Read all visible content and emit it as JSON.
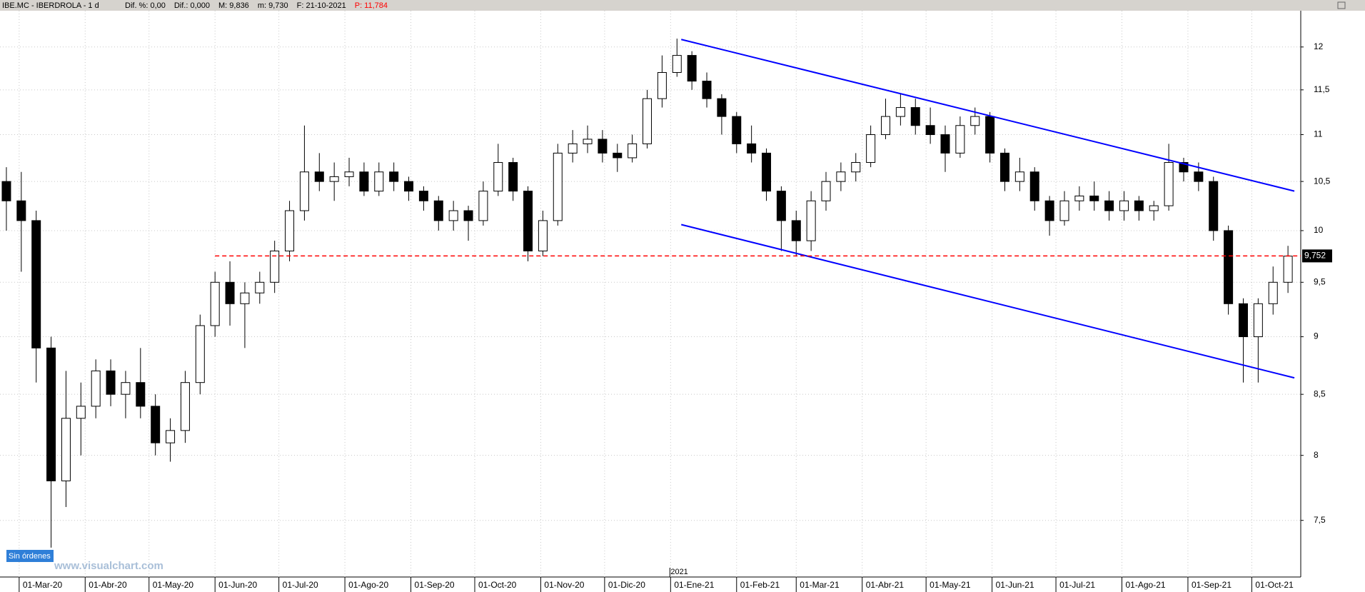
{
  "chart_data": {
    "type": "candlestick",
    "title": "IBE.MC - IBERDROLA - 1 d",
    "header_items": [
      "Dif. %: 0,00",
      "Dif.: 0,000",
      "M: 9,836",
      "m: 9,730",
      "F: 21-10-2021",
      "P: 11,784"
    ],
    "header_colors": [
      "#000000",
      "#000000",
      "#000000",
      "#000000",
      "#000000",
      "#ff0000"
    ],
    "status": "Sin órdenes",
    "watermark": "www.visualchart.com",
    "year_label": "2021",
    "log_scale": true,
    "grid": true,
    "up_color": "#ffffff",
    "down_color": "#000000",
    "x": [
      "2020-02-24",
      "2020-03-02",
      "2020-03-09",
      "2020-03-16",
      "2020-03-23",
      "2020-03-30",
      "2020-04-06",
      "2020-04-13",
      "2020-04-20",
      "2020-04-27",
      "2020-05-04",
      "2020-05-11",
      "2020-05-18",
      "2020-05-25",
      "2020-06-01",
      "2020-06-08",
      "2020-06-15",
      "2020-06-22",
      "2020-06-29",
      "2020-07-06",
      "2020-07-13",
      "2020-07-20",
      "2020-07-27",
      "2020-08-03",
      "2020-08-10",
      "2020-08-17",
      "2020-08-24",
      "2020-08-31",
      "2020-09-07",
      "2020-09-14",
      "2020-09-21",
      "2020-09-28",
      "2020-10-05",
      "2020-10-12",
      "2020-10-19",
      "2020-10-26",
      "2020-11-02",
      "2020-11-09",
      "2020-11-16",
      "2020-11-23",
      "2020-11-30",
      "2020-12-07",
      "2020-12-14",
      "2020-12-21",
      "2020-12-28",
      "2021-01-04",
      "2021-01-11",
      "2021-01-18",
      "2021-01-25",
      "2021-02-01",
      "2021-02-08",
      "2021-02-15",
      "2021-02-22",
      "2021-03-01",
      "2021-03-08",
      "2021-03-15",
      "2021-03-22",
      "2021-03-29",
      "2021-04-05",
      "2021-04-12",
      "2021-04-19",
      "2021-04-26",
      "2021-05-03",
      "2021-05-10",
      "2021-05-17",
      "2021-05-24",
      "2021-05-31",
      "2021-06-07",
      "2021-06-14",
      "2021-06-21",
      "2021-06-28",
      "2021-07-05",
      "2021-07-12",
      "2021-07-19",
      "2021-07-26",
      "2021-08-02",
      "2021-08-09",
      "2021-08-16",
      "2021-08-23",
      "2021-08-30",
      "2021-09-06",
      "2021-09-13",
      "2021-09-20",
      "2021-09-27",
      "2021-10-04",
      "2021-10-11",
      "2021-10-18"
    ],
    "open": [
      10.5,
      10.3,
      10.1,
      8.9,
      7.8,
      8.3,
      8.4,
      8.7,
      8.5,
      8.6,
      8.4,
      8.1,
      8.2,
      8.6,
      9.1,
      9.5,
      9.3,
      9.4,
      9.5,
      9.8,
      10.2,
      10.6,
      10.5,
      10.55,
      10.6,
      10.4,
      10.6,
      10.5,
      10.4,
      10.3,
      10.1,
      10.2,
      10.1,
      10.4,
      10.7,
      10.4,
      9.8,
      10.1,
      10.8,
      10.9,
      10.95,
      10.8,
      10.75,
      10.9,
      11.4,
      11.7,
      11.9,
      11.6,
      11.4,
      11.2,
      10.9,
      10.8,
      10.4,
      10.1,
      9.9,
      10.3,
      10.5,
      10.6,
      10.7,
      11.0,
      11.2,
      11.3,
      11.1,
      11.0,
      10.8,
      11.1,
      11.2,
      10.8,
      10.5,
      10.6,
      10.3,
      10.1,
      10.3,
      10.35,
      10.3,
      10.2,
      10.3,
      10.2,
      10.25,
      10.7,
      10.6,
      10.5,
      10.0,
      9.3,
      9.0,
      9.3,
      9.5
    ],
    "high": [
      10.65,
      10.6,
      10.2,
      9.0,
      8.7,
      8.6,
      8.8,
      8.8,
      8.7,
      8.9,
      8.5,
      8.3,
      8.7,
      9.2,
      9.6,
      9.7,
      9.5,
      9.6,
      9.9,
      10.3,
      11.1,
      10.8,
      10.7,
      10.75,
      10.7,
      10.7,
      10.7,
      10.55,
      10.45,
      10.35,
      10.3,
      10.25,
      10.5,
      10.9,
      10.75,
      10.45,
      10.2,
      10.9,
      11.05,
      11.1,
      11.05,
      10.9,
      11.0,
      11.5,
      11.9,
      12.1,
      11.95,
      11.7,
      11.45,
      11.25,
      11.1,
      10.85,
      10.45,
      10.2,
      10.4,
      10.6,
      10.7,
      10.8,
      11.1,
      11.4,
      11.45,
      11.4,
      11.3,
      11.1,
      11.2,
      11.3,
      11.25,
      10.85,
      10.75,
      10.65,
      10.35,
      10.4,
      10.45,
      10.5,
      10.4,
      10.4,
      10.35,
      10.3,
      10.9,
      10.75,
      10.7,
      10.55,
      10.05,
      9.35,
      9.35,
      9.65,
      9.85
    ],
    "low": [
      10.0,
      9.6,
      8.6,
      7.3,
      7.6,
      8.0,
      8.3,
      8.4,
      8.3,
      8.3,
      8.0,
      7.95,
      8.1,
      8.5,
      9.0,
      9.1,
      8.9,
      9.3,
      9.4,
      9.7,
      10.1,
      10.4,
      10.3,
      10.45,
      10.35,
      10.35,
      10.4,
      10.3,
      10.2,
      10.0,
      10.0,
      9.9,
      10.05,
      10.35,
      10.3,
      9.7,
      9.75,
      10.05,
      10.7,
      10.8,
      10.7,
      10.6,
      10.7,
      10.85,
      11.3,
      11.65,
      11.5,
      11.3,
      11.0,
      10.8,
      10.7,
      10.3,
      9.8,
      9.75,
      9.8,
      10.2,
      10.4,
      10.5,
      10.65,
      10.95,
      11.1,
      11.0,
      10.9,
      10.6,
      10.75,
      11.0,
      10.7,
      10.4,
      10.4,
      10.2,
      9.95,
      10.05,
      10.2,
      10.2,
      10.1,
      10.1,
      10.1,
      10.1,
      10.2,
      10.5,
      10.4,
      9.9,
      9.2,
      8.6,
      8.6,
      9.2,
      9.4
    ],
    "close": [
      10.3,
      10.1,
      8.9,
      7.8,
      8.3,
      8.4,
      8.7,
      8.5,
      8.6,
      8.4,
      8.1,
      8.2,
      8.6,
      9.1,
      9.5,
      9.3,
      9.4,
      9.5,
      9.8,
      10.2,
      10.6,
      10.5,
      10.55,
      10.6,
      10.4,
      10.6,
      10.5,
      10.4,
      10.3,
      10.1,
      10.2,
      10.1,
      10.4,
      10.7,
      10.4,
      9.8,
      10.1,
      10.8,
      10.9,
      10.95,
      10.8,
      10.75,
      10.9,
      11.4,
      11.7,
      11.9,
      11.6,
      11.4,
      11.2,
      10.9,
      10.8,
      10.4,
      10.1,
      9.9,
      10.3,
      10.5,
      10.6,
      10.7,
      11.0,
      11.2,
      11.3,
      11.1,
      11.0,
      10.8,
      11.1,
      11.2,
      10.8,
      10.5,
      10.6,
      10.3,
      10.1,
      10.3,
      10.35,
      10.3,
      10.2,
      10.3,
      10.2,
      10.25,
      10.7,
      10.6,
      10.5,
      10.0,
      9.3,
      9.0,
      9.3,
      9.5,
      9.75
    ],
    "xlim": [
      "2020-02-21",
      "2021-10-24"
    ],
    "xticks": [
      {
        "value": "2020-03-01",
        "label": "01-Mar-20"
      },
      {
        "value": "2020-04-01",
        "label": "01-Abr-20"
      },
      {
        "value": "2020-05-01",
        "label": "01-May-20"
      },
      {
        "value": "2020-06-01",
        "label": "01-Jun-20"
      },
      {
        "value": "2020-07-01",
        "label": "01-Jul-20"
      },
      {
        "value": "2020-08-01",
        "label": "01-Ago-20"
      },
      {
        "value": "2020-09-01",
        "label": "01-Sep-20"
      },
      {
        "value": "2020-10-01",
        "label": "01-Oct-20"
      },
      {
        "value": "2020-11-01",
        "label": "01-Nov-20"
      },
      {
        "value": "2020-12-01",
        "label": "01-Dic-20"
      },
      {
        "value": "2021-01-01",
        "label": "01-Ene-21"
      },
      {
        "value": "2021-02-01",
        "label": "01-Feb-21"
      },
      {
        "value": "2021-03-01",
        "label": "01-Mar-21"
      },
      {
        "value": "2021-04-01",
        "label": "01-Abr-21"
      },
      {
        "value": "2021-05-01",
        "label": "01-May-21"
      },
      {
        "value": "2021-06-01",
        "label": "01-Jun-21"
      },
      {
        "value": "2021-07-01",
        "label": "01-Jul-21"
      },
      {
        "value": "2021-08-01",
        "label": "01-Ago-21"
      },
      {
        "value": "2021-09-01",
        "label": "01-Sep-21"
      },
      {
        "value": "2021-10-01",
        "label": "01-Oct-21"
      }
    ],
    "ylim": [
      7.09,
      12.44
    ],
    "yticks": [
      12,
      {
        "value": 11.5,
        "label": "11,5"
      },
      11,
      {
        "value": 10.5,
        "label": "10,5"
      },
      10,
      {
        "value": 9.5,
        "label": "9,5"
      },
      9,
      {
        "value": 8.5,
        "label": "8,5"
      },
      8,
      {
        "value": 7.5,
        "label": "7,5"
      }
    ],
    "trend_lines": [
      {
        "x": [
          "2021-01-06",
          "2021-10-21"
        ],
        "y": [
          12.09,
          10.4
        ],
        "color": "#0000ff"
      },
      {
        "x": [
          "2021-01-06",
          "2021-10-21"
        ],
        "y": [
          10.06,
          8.64
        ],
        "color": "#0000ff"
      }
    ],
    "hline": {
      "x": "2020-06-01",
      "value": 9.752,
      "label": "9,752",
      "color": "#ff0000"
    }
  }
}
